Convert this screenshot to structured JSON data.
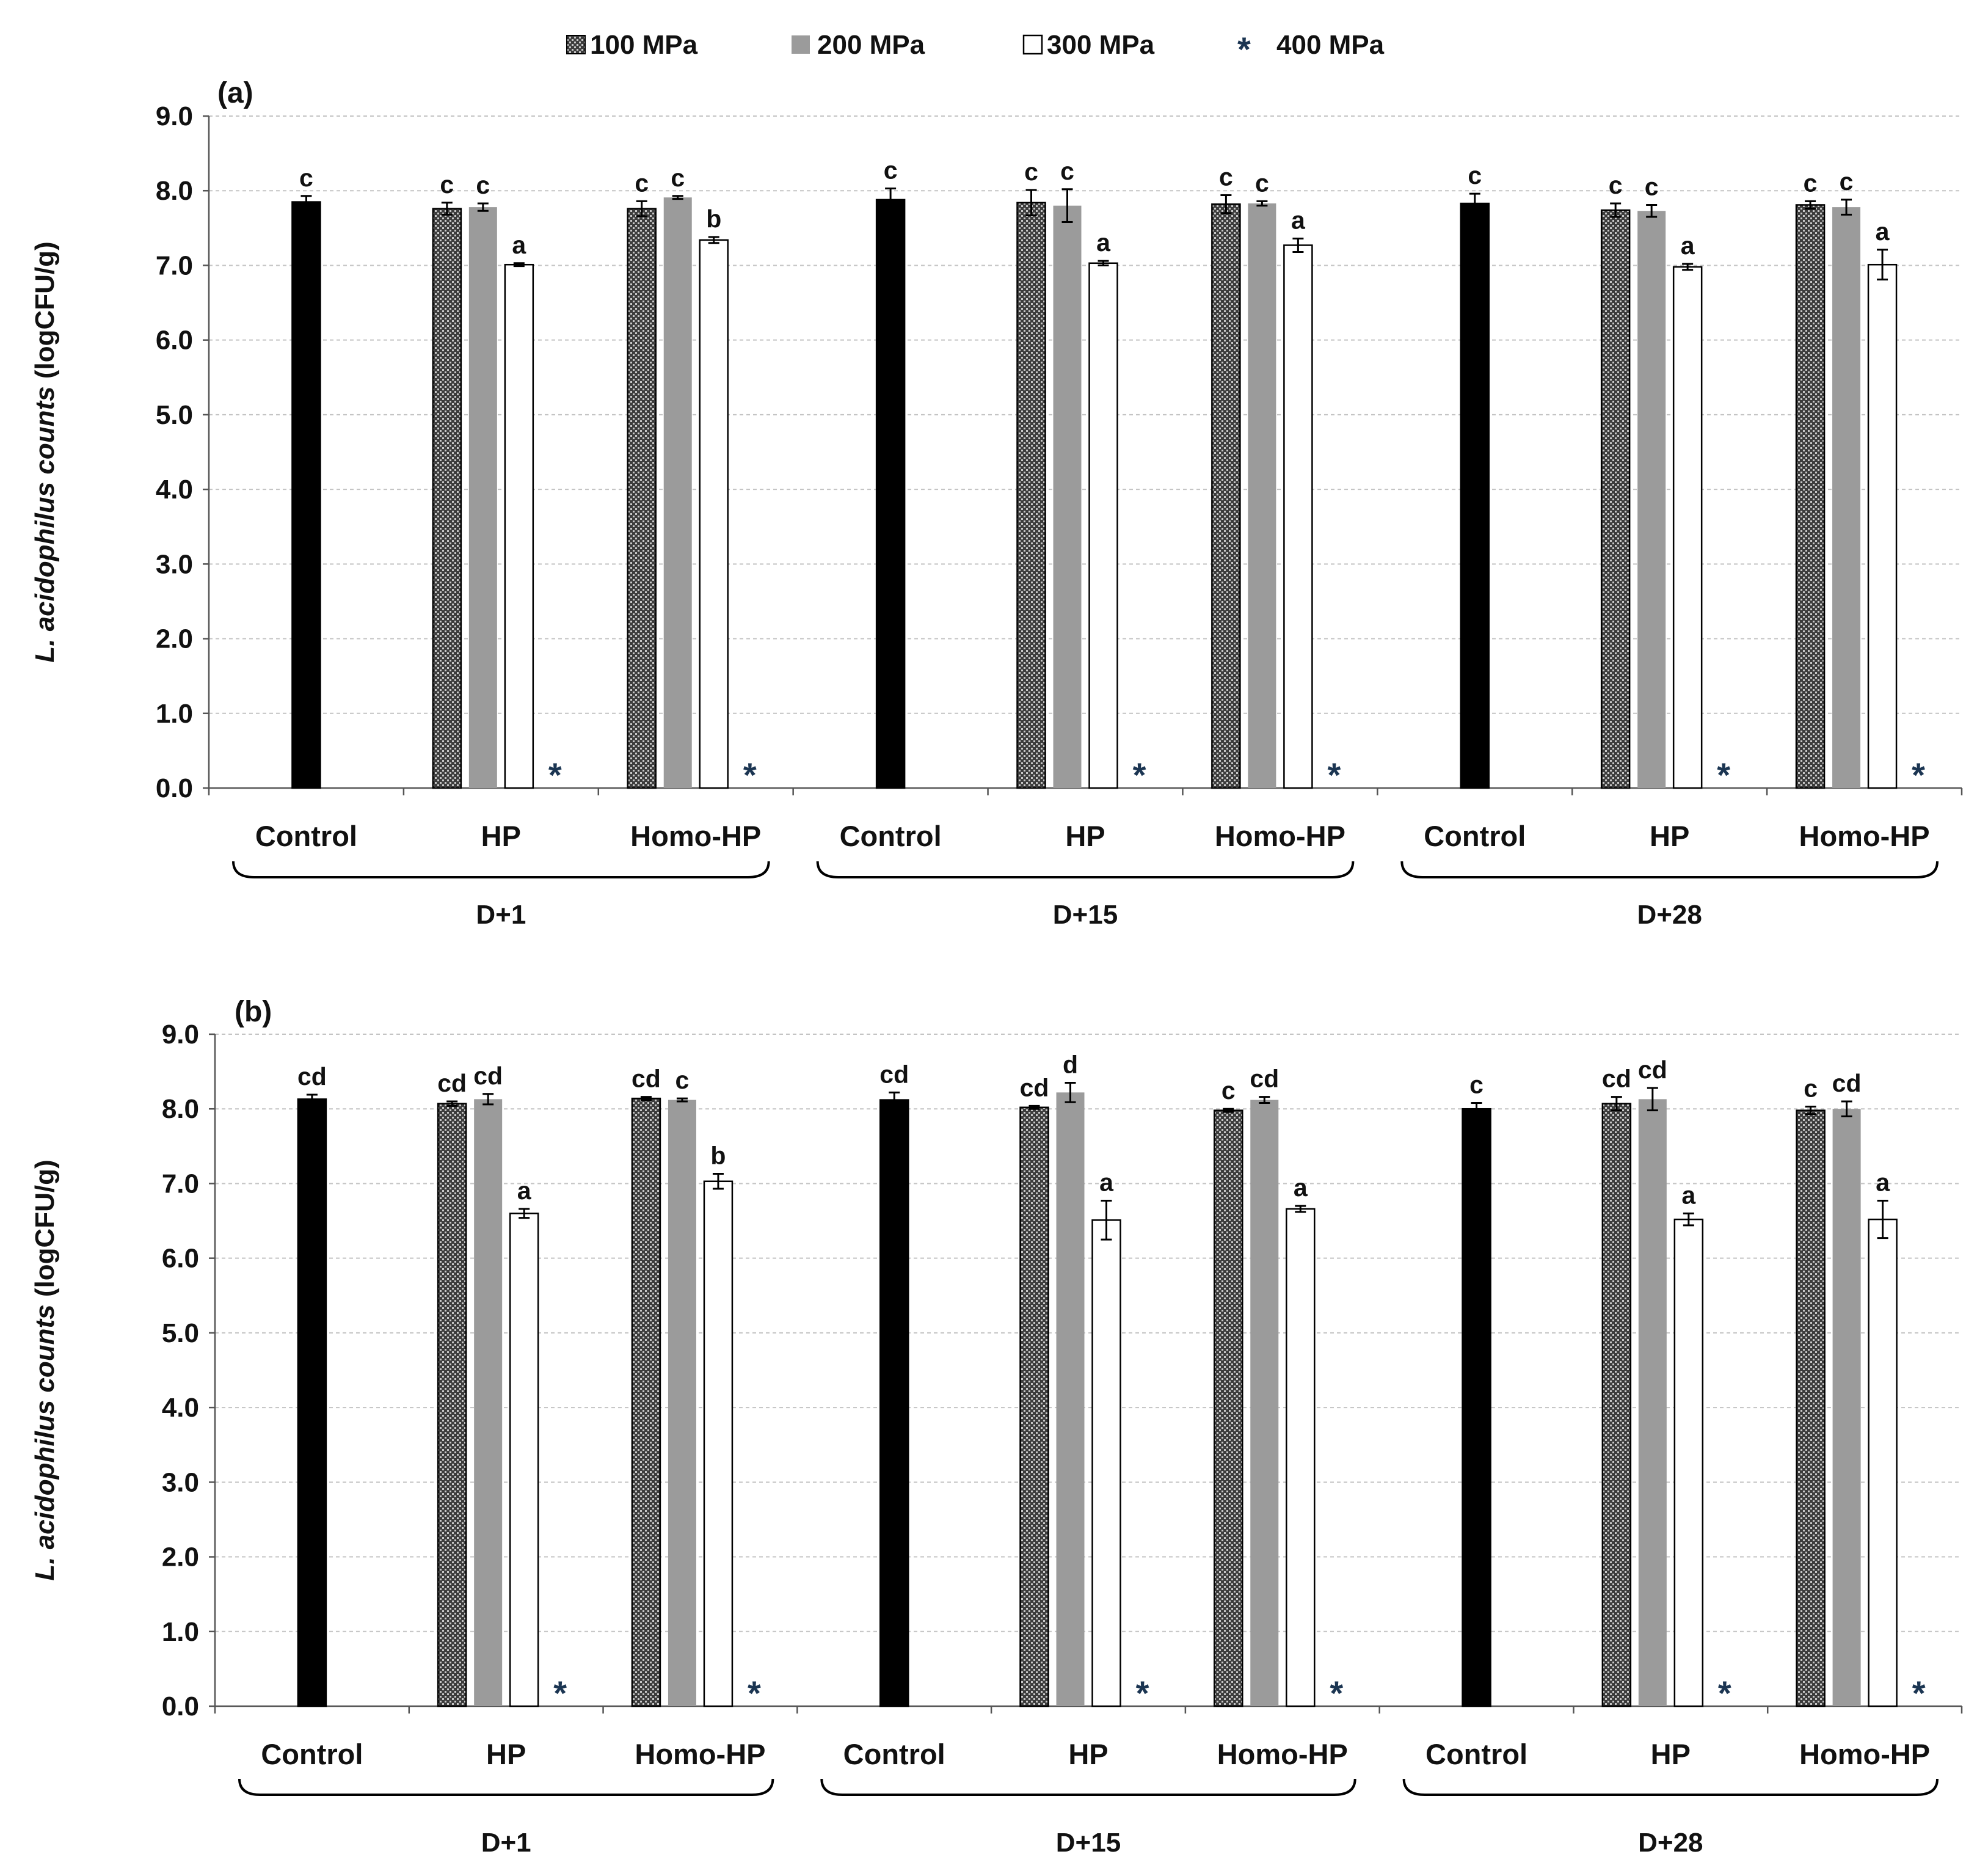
{
  "legend": [
    {
      "label": "100 MPa",
      "fill": "pattern"
    },
    {
      "label": "200 MPa",
      "fill": "#9b9b9b"
    },
    {
      "label": "300 MPa",
      "fill": "#ffffff"
    },
    {
      "label": "400 MPa",
      "fill": "star"
    }
  ],
  "colors": {
    "control": "#000000",
    "p100": "#5a5a5a",
    "p200": "#9b9b9b",
    "p300": "#ffffff",
    "star": "#1b3552"
  },
  "chart_data": [
    {
      "type": "bar",
      "panel_label": "(a)",
      "ylabel_italic": "L. acidophilus counts",
      "ylabel_unit": "(logCFU/g)",
      "ylim": [
        0,
        9
      ],
      "yticks": [
        "0.0",
        "1.0",
        "2.0",
        "3.0",
        "4.0",
        "5.0",
        "6.0",
        "7.0",
        "8.0",
        "9.0"
      ],
      "grid": true,
      "star_symbol": "*",
      "days": [
        "D+1",
        "D+15",
        "D+28"
      ],
      "categories": [
        "Control",
        "HP",
        "Homo-HP",
        "Control",
        "HP",
        "Homo-HP",
        "Control",
        "HP",
        "Homo-HP"
      ],
      "groups": [
        {
          "category": "Control",
          "day": "D+1",
          "bars": [
            {
              "series": "Control",
              "value": 7.85,
              "error": 0.08,
              "letter": "c"
            }
          ]
        },
        {
          "category": "HP",
          "day": "D+1",
          "bars": [
            {
              "series": "100 MPa",
              "value": 7.76,
              "error": 0.08,
              "letter": "c"
            },
            {
              "series": "200 MPa",
              "value": 7.78,
              "error": 0.05,
              "letter": "c"
            },
            {
              "series": "300 MPa",
              "value": 7.01,
              "error": 0.02,
              "letter": "a"
            },
            {
              "series": "400 MPa",
              "value": 0,
              "error": 0,
              "letter": "",
              "star": true
            }
          ]
        },
        {
          "category": "Homo-HP",
          "day": "D+1",
          "bars": [
            {
              "series": "100 MPa",
              "value": 7.76,
              "error": 0.1,
              "letter": "c"
            },
            {
              "series": "200 MPa",
              "value": 7.91,
              "error": 0.02,
              "letter": "c"
            },
            {
              "series": "300 MPa",
              "value": 7.34,
              "error": 0.04,
              "letter": "b"
            },
            {
              "series": "400 MPa",
              "value": 0,
              "error": 0,
              "letter": "",
              "star": true
            }
          ]
        },
        {
          "category": "Control",
          "day": "D+15",
          "bars": [
            {
              "series": "Control",
              "value": 7.88,
              "error": 0.15,
              "letter": "c"
            }
          ]
        },
        {
          "category": "HP",
          "day": "D+15",
          "bars": [
            {
              "series": "100 MPa",
              "value": 7.84,
              "error": 0.17,
              "letter": "c"
            },
            {
              "series": "200 MPa",
              "value": 7.8,
              "error": 0.22,
              "letter": "c"
            },
            {
              "series": "300 MPa",
              "value": 7.03,
              "error": 0.03,
              "letter": "a"
            },
            {
              "series": "400 MPa",
              "value": 0,
              "error": 0,
              "letter": "",
              "star": true
            }
          ]
        },
        {
          "category": "Homo-HP",
          "day": "D+15",
          "bars": [
            {
              "series": "100 MPa",
              "value": 7.82,
              "error": 0.12,
              "letter": "c"
            },
            {
              "series": "200 MPa",
              "value": 7.83,
              "error": 0.03,
              "letter": "c"
            },
            {
              "series": "300 MPa",
              "value": 7.27,
              "error": 0.09,
              "letter": "a"
            },
            {
              "series": "400 MPa",
              "value": 0,
              "error": 0,
              "letter": "",
              "star": true
            }
          ]
        },
        {
          "category": "Control",
          "day": "D+28",
          "bars": [
            {
              "series": "Control",
              "value": 7.83,
              "error": 0.13,
              "letter": "c"
            }
          ]
        },
        {
          "category": "HP",
          "day": "D+28",
          "bars": [
            {
              "series": "100 MPa",
              "value": 7.74,
              "error": 0.09,
              "letter": "c"
            },
            {
              "series": "200 MPa",
              "value": 7.73,
              "error": 0.08,
              "letter": "c"
            },
            {
              "series": "300 MPa",
              "value": 6.98,
              "error": 0.04,
              "letter": "a"
            },
            {
              "series": "400 MPa",
              "value": 0,
              "error": 0,
              "letter": "",
              "star": true
            }
          ]
        },
        {
          "category": "Homo-HP",
          "day": "D+28",
          "bars": [
            {
              "series": "100 MPa",
              "value": 7.81,
              "error": 0.05,
              "letter": "c"
            },
            {
              "series": "200 MPa",
              "value": 7.78,
              "error": 0.1,
              "letter": "c"
            },
            {
              "series": "300 MPa",
              "value": 7.01,
              "error": 0.2,
              "letter": "a"
            },
            {
              "series": "400 MPa",
              "value": 0,
              "error": 0,
              "letter": "",
              "star": true
            }
          ]
        }
      ]
    },
    {
      "type": "bar",
      "panel_label": "(b)",
      "ylabel_italic": "L. acidophilus counts",
      "ylabel_unit": "(logCFU/g)",
      "ylim": [
        0,
        9
      ],
      "yticks": [
        "0.0",
        "1.0",
        "2.0",
        "3.0",
        "4.0",
        "5.0",
        "6.0",
        "7.0",
        "8.0",
        "9.0"
      ],
      "grid": true,
      "star_symbol": "*",
      "days": [
        "D+1",
        "D+15",
        "D+28"
      ],
      "categories": [
        "Control",
        "HP",
        "Homo-HP",
        "Control",
        "HP",
        "Homo-HP",
        "Control",
        "HP",
        "Homo-HP"
      ],
      "groups": [
        {
          "category": "Control",
          "day": "D+1",
          "bars": [
            {
              "series": "Control",
              "value": 8.13,
              "error": 0.06,
              "letter": "cd"
            }
          ]
        },
        {
          "category": "HP",
          "day": "D+1",
          "bars": [
            {
              "series": "100 MPa",
              "value": 8.07,
              "error": 0.03,
              "letter": "cd"
            },
            {
              "series": "200 MPa",
              "value": 8.13,
              "error": 0.07,
              "letter": "cd"
            },
            {
              "series": "300 MPa",
              "value": 6.6,
              "error": 0.06,
              "letter": "a"
            },
            {
              "series": "400 MPa",
              "value": 0,
              "error": 0,
              "letter": "",
              "star": true
            }
          ]
        },
        {
          "category": "Homo-HP",
          "day": "D+1",
          "bars": [
            {
              "series": "100 MPa",
              "value": 8.14,
              "error": 0.02,
              "letter": "cd"
            },
            {
              "series": "200 MPa",
              "value": 8.12,
              "error": 0.02,
              "letter": "c"
            },
            {
              "series": "300 MPa",
              "value": 7.03,
              "error": 0.1,
              "letter": "b"
            },
            {
              "series": "400 MPa",
              "value": 0,
              "error": 0,
              "letter": "",
              "star": true
            }
          ]
        },
        {
          "category": "Control",
          "day": "D+15",
          "bars": [
            {
              "series": "Control",
              "value": 8.12,
              "error": 0.1,
              "letter": "cd"
            }
          ]
        },
        {
          "category": "HP",
          "day": "D+15",
          "bars": [
            {
              "series": "100 MPa",
              "value": 8.02,
              "error": 0.02,
              "letter": "cd"
            },
            {
              "series": "200 MPa",
              "value": 8.22,
              "error": 0.13,
              "letter": "d"
            },
            {
              "series": "300 MPa",
              "value": 6.51,
              "error": 0.26,
              "letter": "a"
            },
            {
              "series": "400 MPa",
              "value": 0,
              "error": 0,
              "letter": "",
              "star": true
            }
          ]
        },
        {
          "category": "Homo-HP",
          "day": "D+15",
          "bars": [
            {
              "series": "100 MPa",
              "value": 7.98,
              "error": 0.02,
              "letter": "c"
            },
            {
              "series": "200 MPa",
              "value": 8.12,
              "error": 0.04,
              "letter": "cd"
            },
            {
              "series": "300 MPa",
              "value": 6.66,
              "error": 0.04,
              "letter": "a"
            },
            {
              "series": "400 MPa",
              "value": 0,
              "error": 0,
              "letter": "",
              "star": true
            }
          ]
        },
        {
          "category": "Control",
          "day": "D+28",
          "bars": [
            {
              "series": "Control",
              "value": 8.0,
              "error": 0.08,
              "letter": "c"
            }
          ]
        },
        {
          "category": "HP",
          "day": "D+28",
          "bars": [
            {
              "series": "100 MPa",
              "value": 8.07,
              "error": 0.09,
              "letter": "cd"
            },
            {
              "series": "200 MPa",
              "value": 8.13,
              "error": 0.15,
              "letter": "cd"
            },
            {
              "series": "300 MPa",
              "value": 6.52,
              "error": 0.08,
              "letter": "a"
            },
            {
              "series": "400 MPa",
              "value": 0,
              "error": 0,
              "letter": "",
              "star": true
            }
          ]
        },
        {
          "category": "Homo-HP",
          "day": "D+28",
          "bars": [
            {
              "series": "100 MPa",
              "value": 7.98,
              "error": 0.05,
              "letter": "c"
            },
            {
              "series": "200 MPa",
              "value": 8.0,
              "error": 0.1,
              "letter": "cd"
            },
            {
              "series": "300 MPa",
              "value": 6.52,
              "error": 0.25,
              "letter": "a"
            },
            {
              "series": "400 MPa",
              "value": 0,
              "error": 0,
              "letter": "",
              "star": true
            }
          ]
        }
      ]
    }
  ]
}
